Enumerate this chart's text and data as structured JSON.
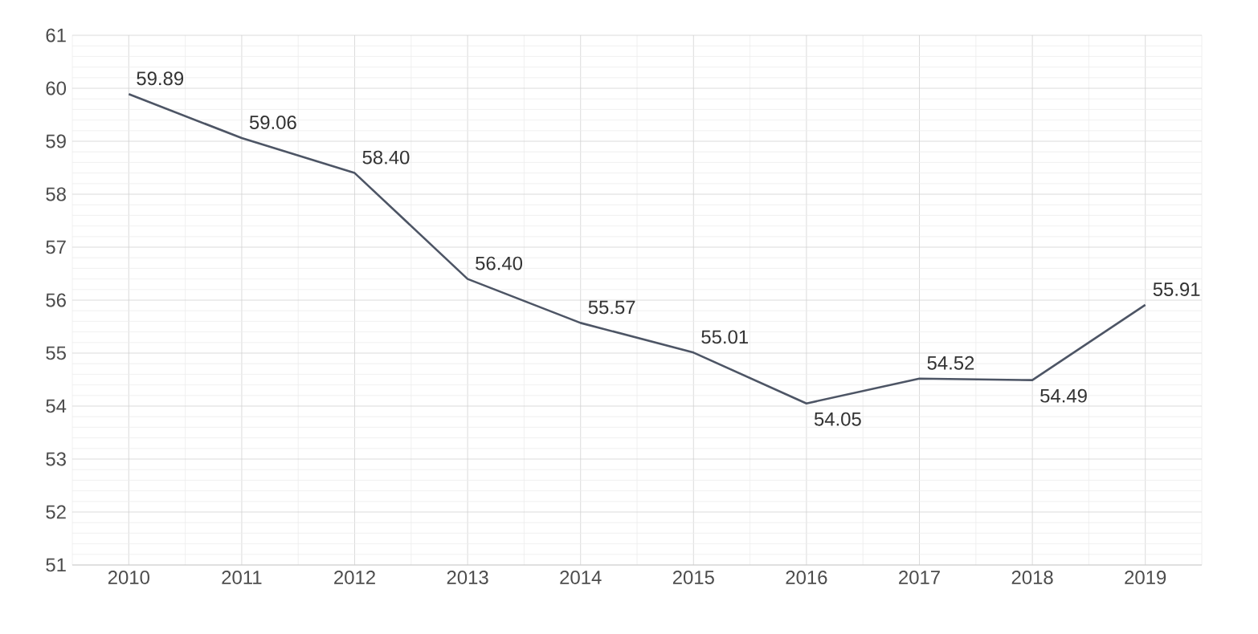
{
  "chart_data": {
    "type": "line",
    "categories": [
      "2010",
      "2011",
      "2012",
      "2013",
      "2014",
      "2015",
      "2016",
      "2017",
      "2018",
      "2019"
    ],
    "values": [
      59.89,
      59.06,
      58.4,
      56.4,
      55.57,
      55.01,
      54.05,
      54.52,
      54.49,
      55.91
    ],
    "color": "#4d5565",
    "ylim": [
      51,
      61
    ],
    "yticks": [
      51,
      52,
      53,
      54,
      55,
      56,
      57,
      58,
      59,
      60,
      61
    ],
    "value_labels": [
      "59.89",
      "59.06",
      "58.40",
      "56.40",
      "55.57",
      "55.01",
      "54.05",
      "54.52",
      "54.49",
      "55.91"
    ],
    "grid": true,
    "marker": "none",
    "line_style": "solid"
  }
}
